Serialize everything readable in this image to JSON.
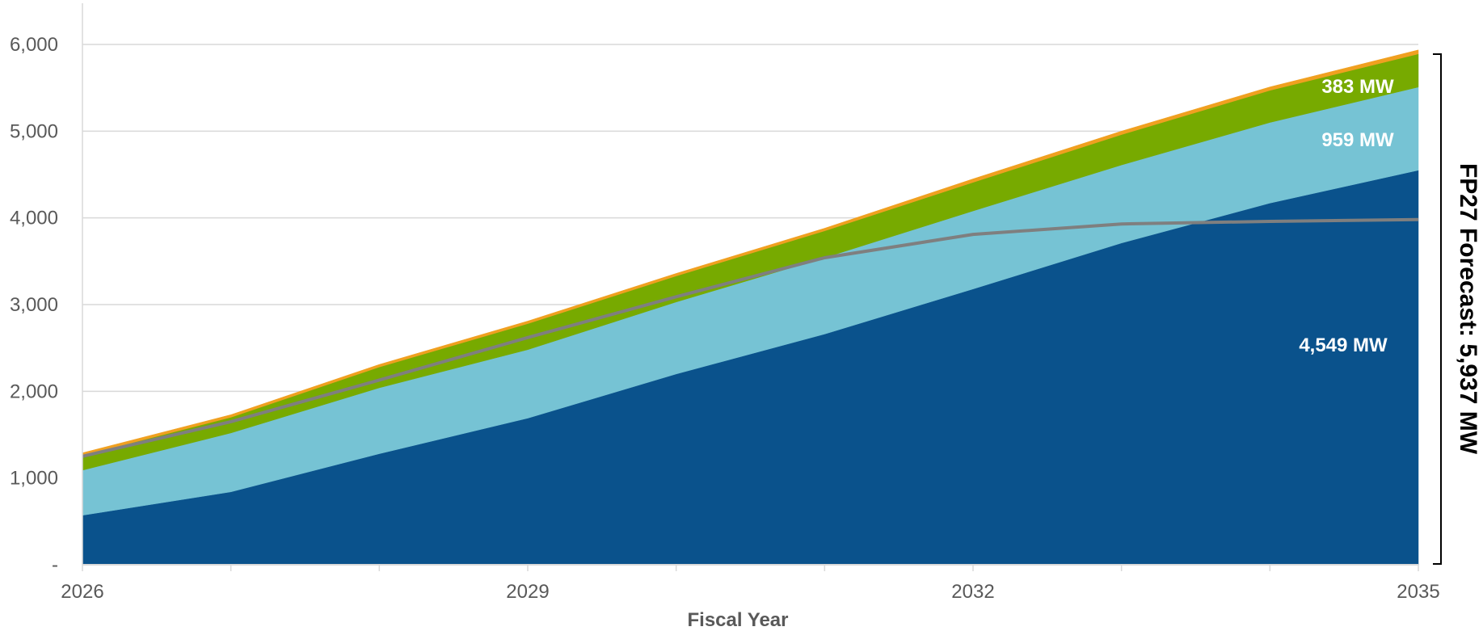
{
  "chart_data": {
    "type": "area",
    "stacked": true,
    "xlabel": "Fiscal Year",
    "ylabel": "",
    "ylim": [
      0,
      6000
    ],
    "yticks": [
      0,
      1000,
      2000,
      3000,
      4000,
      5000,
      6000
    ],
    "ytick_labels": [
      "-",
      "1,000",
      "2,000",
      "3,000",
      "4,000",
      "5,000",
      "6,000"
    ],
    "x": [
      2026,
      2027,
      2028,
      2029,
      2030,
      2031,
      2032,
      2033,
      2034,
      2035
    ],
    "xtick_labels": [
      "2026",
      "2029",
      "2032",
      "2035"
    ],
    "xtick_values": [
      2026,
      2029,
      2032,
      2035
    ],
    "grid": true,
    "series": [
      {
        "key": "s1",
        "color": "#0a528c",
        "values": [
          570,
          840,
          1280,
          1690,
          2200,
          2660,
          3180,
          3710,
          4170,
          4549
        ]
      },
      {
        "key": "s2",
        "color": "#76c3d4",
        "values": [
          520,
          680,
          760,
          790,
          830,
          880,
          900,
          900,
          930,
          959
        ]
      },
      {
        "key": "s3",
        "color": "#77aa00",
        "values": [
          170,
          180,
          240,
          300,
          300,
          310,
          330,
          350,
          370,
          383
        ]
      },
      {
        "key": "s4",
        "color": "#f0a020",
        "values": [
          30,
          30,
          30,
          30,
          30,
          30,
          40,
          40,
          40,
          46
        ]
      }
    ],
    "line_series": {
      "key": "line",
      "color": "#7f7f7f",
      "values": [
        1250,
        1650,
        2130,
        2620,
        3090,
        3540,
        3810,
        3930,
        3960,
        3980
      ]
    },
    "annotations": {
      "label_s3": "383 MW",
      "label_s2": "959 MW",
      "label_s1": "4,549 MW",
      "bracket_text": "FP27 Forecast: 5,937 MW"
    }
  }
}
